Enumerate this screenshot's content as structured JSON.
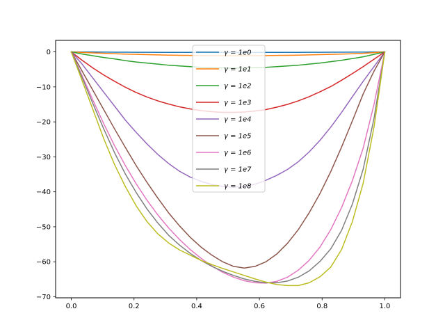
{
  "chart_data": {
    "type": "line",
    "title": "",
    "xlabel": "",
    "ylabel": "",
    "xlim": [
      -0.05,
      1.05
    ],
    "ylim": [
      -70.3,
      3.3
    ],
    "x_ticks": [
      0.0,
      0.2,
      0.4,
      0.6,
      0.8,
      1.0
    ],
    "y_ticks": [
      0,
      -10,
      -20,
      -30,
      -40,
      -50,
      -60,
      -70
    ],
    "x_tick_labels": [
      "0.0",
      "0.2",
      "0.4",
      "0.6",
      "0.8",
      "1.0"
    ],
    "y_tick_labels": [
      "0",
      "−10",
      "−20",
      "−30",
      "−40",
      "−50",
      "−60",
      "−70"
    ],
    "grid": false,
    "legend_position": "upper-center",
    "x": [
      0.0,
      0.0345,
      0.069,
      0.1034,
      0.1379,
      0.1724,
      0.2069,
      0.2414,
      0.2759,
      0.3103,
      0.3448,
      0.3793,
      0.4138,
      0.4483,
      0.4828,
      0.5172,
      0.5517,
      0.5862,
      0.6207,
      0.6552,
      0.6897,
      0.7241,
      0.7586,
      0.7931,
      0.8276,
      0.8621,
      0.8966,
      0.931,
      0.9655,
      1.0
    ],
    "series": [
      {
        "name": "γ = 1e0",
        "label_prefix": "γ = ",
        "label_math": "1e0",
        "color": "#1f77b4",
        "values": [
          0,
          -0.02,
          -0.04,
          -0.06,
          -0.07,
          -0.09,
          -0.1,
          -0.11,
          -0.12,
          -0.13,
          -0.14,
          -0.14,
          -0.14,
          -0.15,
          -0.15,
          -0.15,
          -0.15,
          -0.15,
          -0.14,
          -0.14,
          -0.13,
          -0.12,
          -0.11,
          -0.1,
          -0.09,
          -0.08,
          -0.06,
          -0.05,
          -0.02,
          0
        ]
      },
      {
        "name": "γ = 1e1",
        "label_prefix": "γ = ",
        "label_math": "1e1",
        "color": "#ff7f0e",
        "values": [
          0,
          -0.15,
          -0.28,
          -0.41,
          -0.52,
          -0.62,
          -0.71,
          -0.79,
          -0.86,
          -0.92,
          -0.97,
          -1.01,
          -1.04,
          -1.06,
          -1.07,
          -1.08,
          -1.08,
          -1.06,
          -1.04,
          -1.01,
          -0.97,
          -0.92,
          -0.86,
          -0.79,
          -0.71,
          -0.62,
          -0.52,
          -0.41,
          -0.2,
          0
        ]
      },
      {
        "name": "γ = 1e2",
        "label_prefix": "γ = ",
        "label_math": "1e2",
        "color": "#2ca02c",
        "values": [
          0,
          -0.6,
          -1.1,
          -1.6,
          -2.0,
          -2.5,
          -2.9,
          -3.2,
          -3.5,
          -3.8,
          -4.0,
          -4.2,
          -4.4,
          -4.5,
          -4.6,
          -4.65,
          -4.6,
          -4.5,
          -4.4,
          -4.2,
          -4.0,
          -3.8,
          -3.5,
          -3.2,
          -2.8,
          -2.4,
          -1.9,
          -1.4,
          -0.7,
          0
        ]
      },
      {
        "name": "γ = 1e3",
        "label_prefix": "γ = ",
        "label_math": "1e3",
        "color": "#d62728",
        "values": [
          0,
          -2.4,
          -4.6,
          -6.6,
          -8.4,
          -10.1,
          -11.6,
          -12.9,
          -14.0,
          -14.9,
          -15.7,
          -16.3,
          -16.8,
          -17.1,
          -17.3,
          -17.3,
          -17.2,
          -16.9,
          -16.5,
          -15.8,
          -15.0,
          -14.0,
          -12.8,
          -11.4,
          -9.9,
          -8.1,
          -6.2,
          -4.2,
          -2.1,
          0
        ]
      },
      {
        "name": "γ = 1e4",
        "label_prefix": "γ = ",
        "label_math": "1e4",
        "color": "#9467bd",
        "values": [
          0,
          -3.5,
          -7.5,
          -11.5,
          -15.5,
          -19.5,
          -23.0,
          -26.3,
          -29.3,
          -31.9,
          -34.1,
          -35.8,
          -37.0,
          -37.9,
          -38.5,
          -38.7,
          -38.5,
          -37.8,
          -36.7,
          -35.3,
          -33.6,
          -31.4,
          -28.6,
          -25.3,
          -21.5,
          -17.3,
          -12.8,
          -8.4,
          -4.2,
          0
        ]
      },
      {
        "name": "γ = 1e5",
        "label_prefix": "γ = ",
        "label_math": "1e5",
        "color": "#8c564b",
        "values": [
          0,
          -5.5,
          -11.0,
          -16.5,
          -22.0,
          -27.3,
          -32.5,
          -37.3,
          -41.8,
          -46.0,
          -49.7,
          -53.0,
          -55.8,
          -58.1,
          -60.0,
          -61.3,
          -61.8,
          -61.3,
          -60.0,
          -57.8,
          -54.7,
          -50.8,
          -46.0,
          -40.5,
          -34.2,
          -27.2,
          -19.7,
          -12.0,
          -5.5,
          0
        ]
      },
      {
        "name": "γ = 1e6",
        "label_prefix": "γ = ",
        "label_math": "1e6",
        "color": "#e377c2",
        "values": [
          0,
          -6.8,
          -13.8,
          -20.5,
          -26.8,
          -32.5,
          -37.7,
          -42.4,
          -46.6,
          -50.3,
          -53.6,
          -56.5,
          -59.0,
          -61.2,
          -63.0,
          -64.4,
          -65.4,
          -66.0,
          -66.1,
          -65.6,
          -64.4,
          -62.4,
          -59.6,
          -55.8,
          -50.8,
          -44.5,
          -36.8,
          -27.5,
          -15.0,
          0
        ]
      },
      {
        "name": "γ = 1e7",
        "label_prefix": "γ = ",
        "label_math": "1e7",
        "color": "#7f7f7f",
        "values": [
          0,
          -7.3,
          -14.8,
          -22.0,
          -28.8,
          -34.9,
          -40.2,
          -44.9,
          -48.9,
          -52.4,
          -55.2,
          -57.6,
          -59.6,
          -61.3,
          -62.7,
          -63.9,
          -64.9,
          -65.6,
          -66.0,
          -66.0,
          -65.5,
          -64.4,
          -62.6,
          -59.9,
          -56.3,
          -51.0,
          -43.5,
          -33.5,
          -19.0,
          0
        ]
      },
      {
        "name": "γ = 1e8",
        "label_prefix": "γ = ",
        "label_math": "1e8",
        "color": "#bcbd22",
        "values": [
          0,
          -8.2,
          -16.5,
          -24.8,
          -32.2,
          -38.5,
          -44.0,
          -48.5,
          -52.0,
          -54.6,
          -56.6,
          -58.1,
          -59.6,
          -60.8,
          -61.9,
          -62.9,
          -63.9,
          -64.9,
          -65.8,
          -66.5,
          -66.8,
          -66.8,
          -66.0,
          -64.3,
          -61.5,
          -56.5,
          -48.5,
          -37.5,
          -21.5,
          0
        ]
      }
    ]
  }
}
